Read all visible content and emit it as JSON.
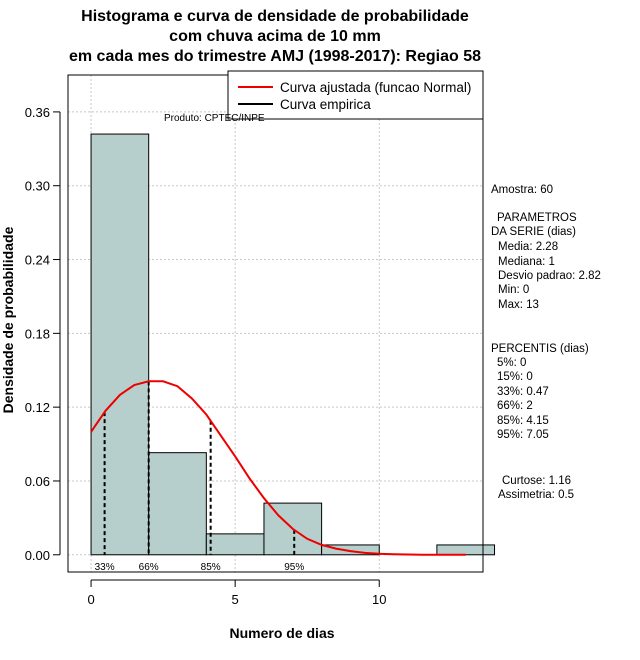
{
  "chart_data": {
    "type": "bar",
    "title_lines": [
      "Histograma e curva de densidade de probabilidade",
      "com chuva acima de 10 mm",
      "em cada mes do trimestre AMJ (1998-2017): Regiao 58"
    ],
    "xlabel": "Numero de dias",
    "ylabel": "Densidade de probabilidade",
    "xlim": [
      -0.8,
      13.6
    ],
    "ylim": [
      -0.014,
      0.39
    ],
    "x_ticks": [
      0,
      5,
      10
    ],
    "y_ticks": [
      "0.00",
      "0.06",
      "0.12",
      "0.18",
      "0.24",
      "0.30",
      "0.36"
    ],
    "grid": true,
    "bins": [
      {
        "from": 0,
        "to": 2,
        "density": 0.342
      },
      {
        "from": 2,
        "to": 4,
        "density": 0.083
      },
      {
        "from": 4,
        "to": 6,
        "density": 0.017
      },
      {
        "from": 6,
        "to": 8,
        "density": 0.042
      },
      {
        "from": 8,
        "to": 10,
        "density": 0.008
      },
      {
        "from": 10,
        "to": 12,
        "density": 0
      },
      {
        "from": 12,
        "to": 14,
        "density": 0.008
      }
    ],
    "fitted_curve": {
      "name": "Curva ajustada (funcao Normal)",
      "color": "#ee0000",
      "x": [
        0,
        0.5,
        1,
        1.5,
        2,
        2.5,
        3,
        3.5,
        4,
        4.5,
        5,
        5.5,
        6,
        6.5,
        7,
        7.5,
        8,
        8.5,
        9,
        9.5,
        10,
        10.5,
        11,
        11.5,
        12,
        12.5,
        13
      ],
      "y": [
        0.1,
        0.117,
        0.13,
        0.138,
        0.141,
        0.141,
        0.137,
        0.127,
        0.114,
        0.097,
        0.08,
        0.062,
        0.046,
        0.032,
        0.021,
        0.013,
        0.008,
        0.005,
        0.003,
        0.0015,
        0.0008,
        0.0004,
        0.0002,
        0.0001,
        5e-05,
        2e-05,
        1e-05
      ]
    },
    "empirical_curve": {
      "name": "Curva empirica",
      "color": "#000000"
    },
    "bar_color": "#b6cfcd",
    "legend_position": "top-right",
    "percentile_marks": [
      {
        "x": 0.47,
        "label": "33%"
      },
      {
        "x": 2,
        "label": "66%"
      },
      {
        "x": 4.15,
        "label": "85%"
      },
      {
        "x": 7.05,
        "label": "95%"
      }
    ],
    "product_label": "Produto: CPTEC/INPE",
    "stats": {
      "amostra": "Amostra: 60",
      "param_header_1": "PARAMETROS",
      "param_header_2": "DA SERIE (dias)",
      "params": [
        "Media: 2.28",
        "Mediana: 1",
        "Desvio padrao: 2.82",
        "Min: 0",
        "Max: 13"
      ],
      "percentis_header": "PERCENTIS (dias)",
      "percentis": [
        "5%: 0",
        "15%: 0",
        "33%: 0.47",
        "66%: 2",
        "85%: 4.15",
        "95%: 7.05"
      ],
      "curtose": "Curtose: 1.16",
      "assimetria": "Assimetria: 0.5"
    }
  }
}
